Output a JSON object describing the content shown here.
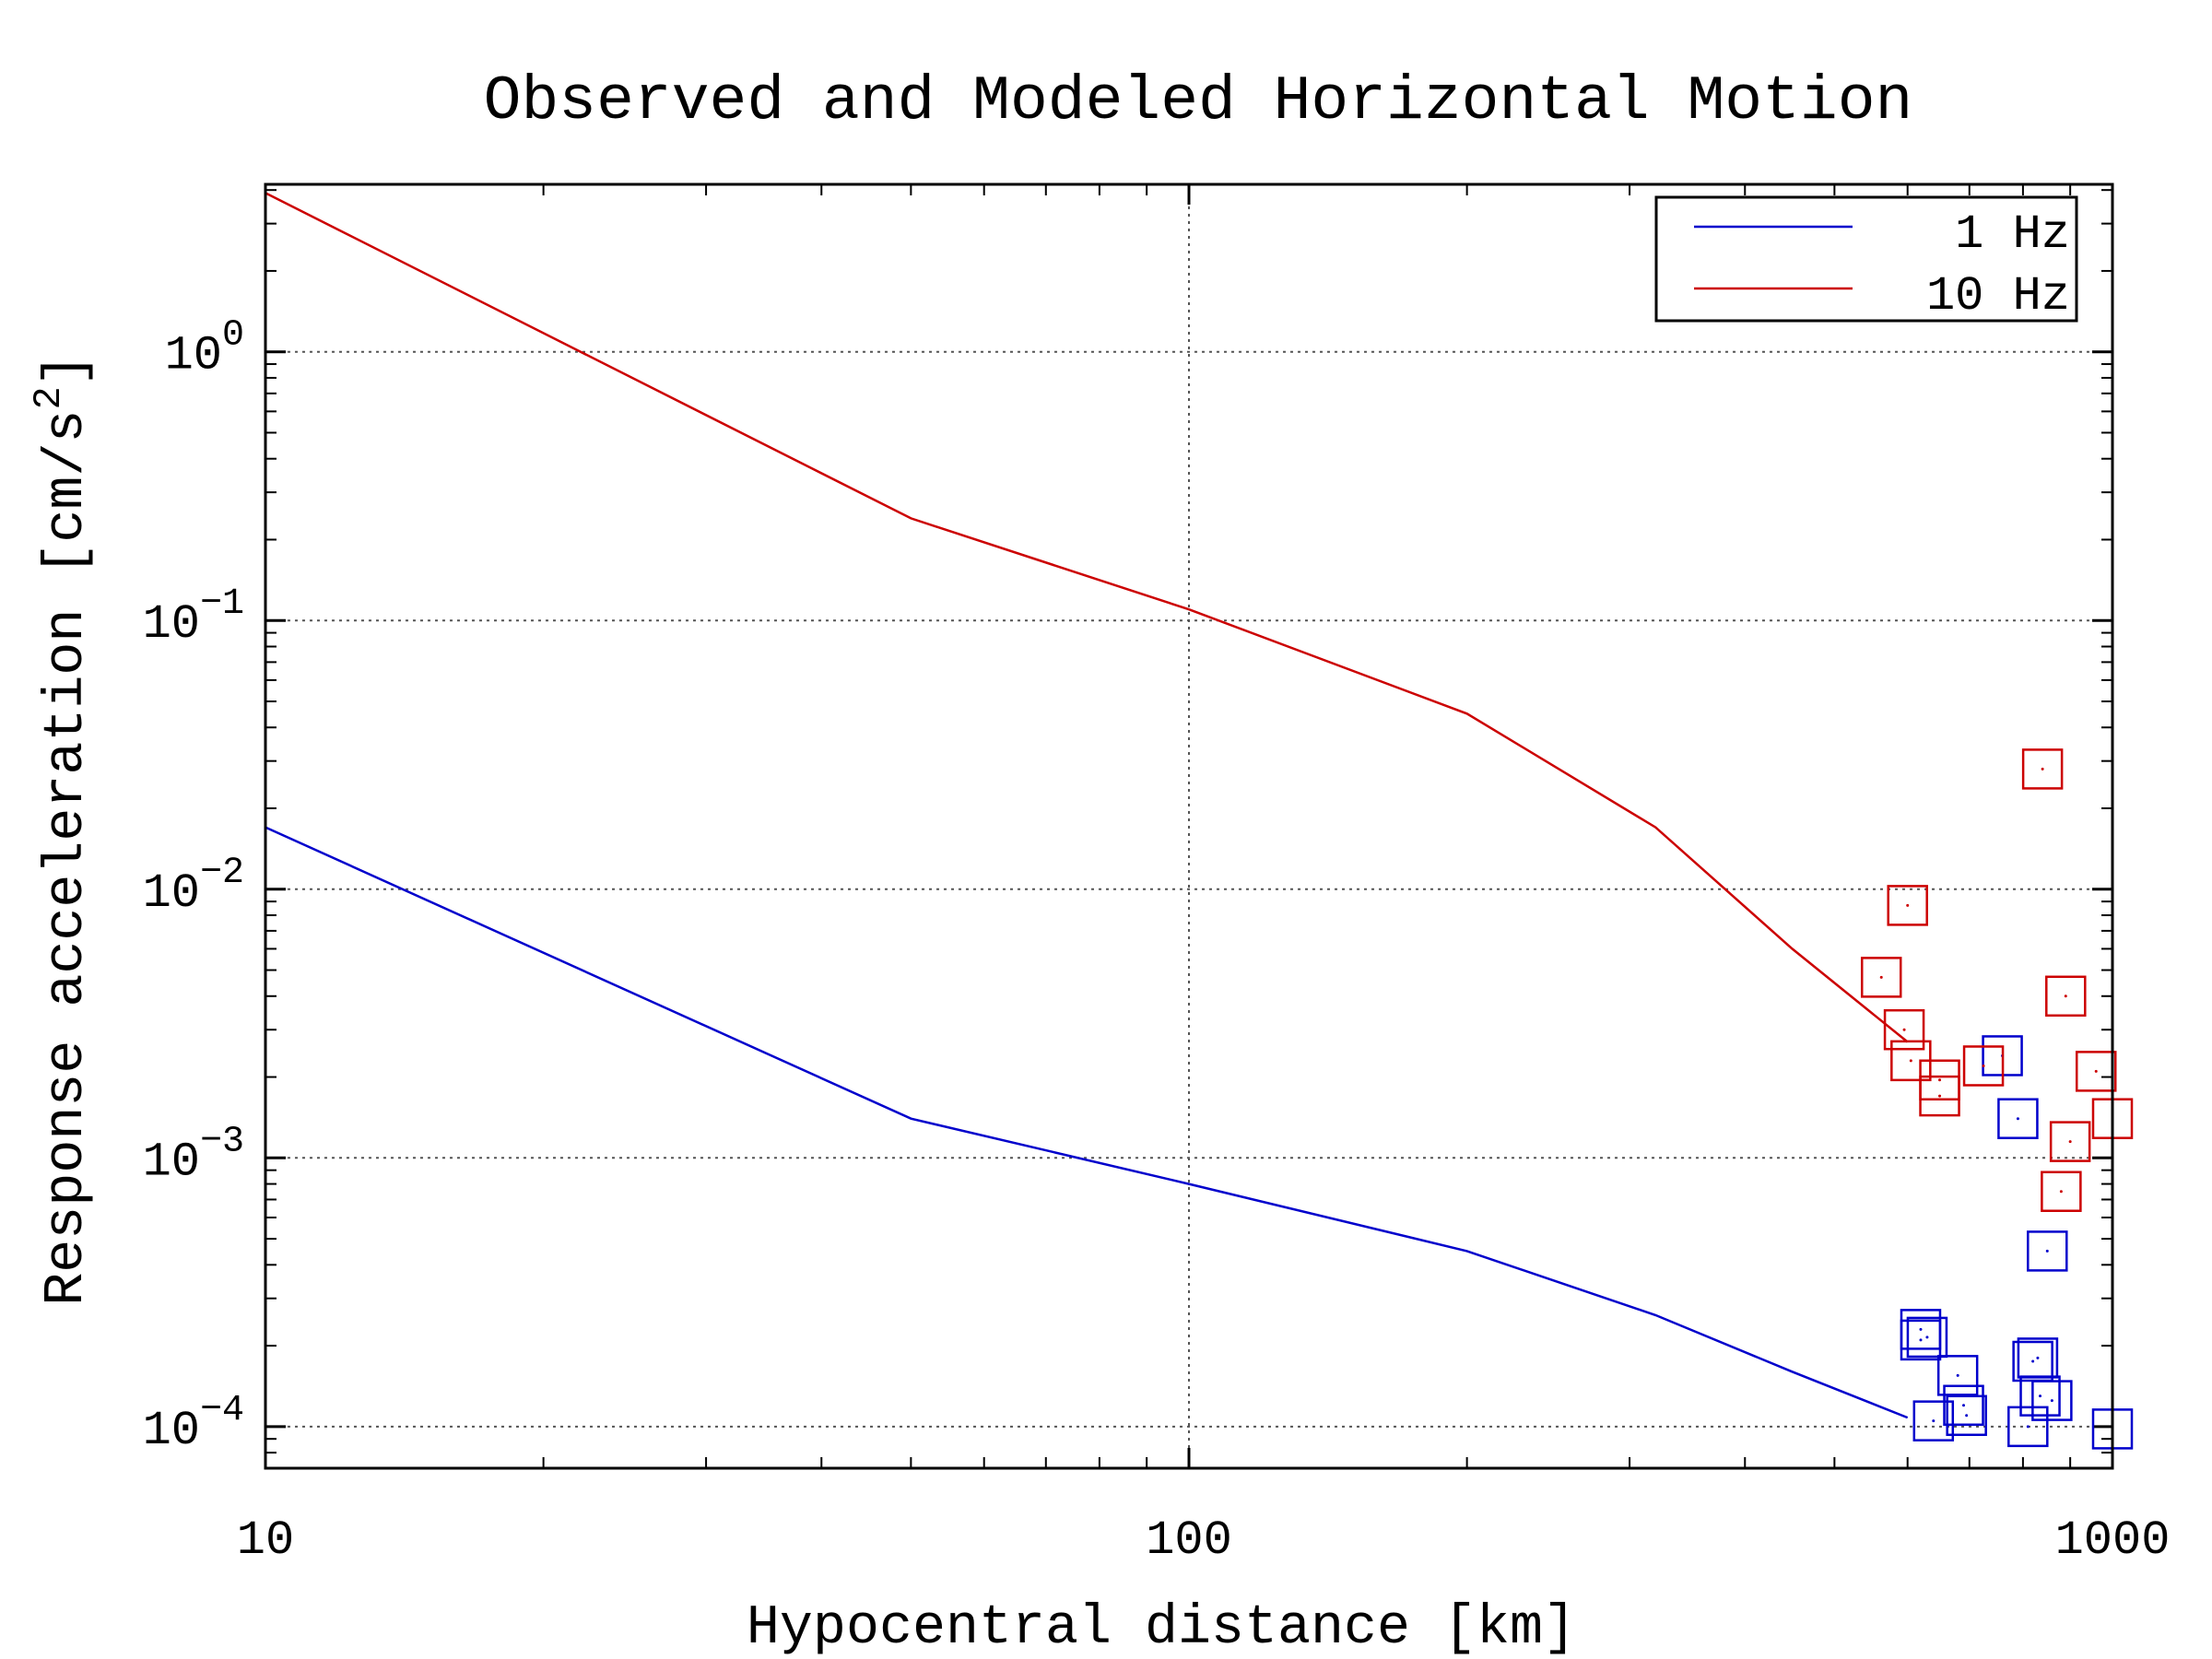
{
  "chart_data": {
    "type": "scatter",
    "title": "Observed and Modeled Horizontal Motion",
    "xlabel": "Hypocentral distance [km]",
    "ylabel": "Response acceleration [cm/s²]",
    "ylabel_main": "Response acceleration [cm/s",
    "ylabel_sup": "2",
    "ylabel_end": "]",
    "x_scale": "log",
    "y_scale": "log",
    "xlim": [
      10,
      1000
    ],
    "ylim": [
      7e-05,
      4.2
    ],
    "grid": true,
    "legend_position": "top-right",
    "x_ticks": [
      {
        "value": 10,
        "label": "10"
      },
      {
        "value": 100,
        "label": "100"
      },
      {
        "value": 1000,
        "label": "1000"
      }
    ],
    "y_ticks": [
      {
        "value": 1,
        "base": "10",
        "exp": "0"
      },
      {
        "value": 0.1,
        "base": "10",
        "exp": "−1"
      },
      {
        "value": 0.01,
        "base": "10",
        "exp": "−2"
      },
      {
        "value": 0.001,
        "base": "10",
        "exp": "−3"
      },
      {
        "value": 0.0001,
        "base": "10",
        "exp": "−4"
      }
    ],
    "series": [
      {
        "name": "1 Hz",
        "color": "#0000cc",
        "model_line": {
          "x": [
            10,
            50,
            100,
            200,
            320,
            450,
            600
          ],
          "y": [
            0.017,
            0.0014,
            0.0008,
            0.00045,
            0.00026,
            0.00016,
            0.000108
          ]
        },
        "observed": {
          "marker": "square",
          "x": [
            760,
            790,
            850,
            820,
            830,
            835,
            1000,
            680,
            690,
            695,
            640,
            810,
            860,
            620,
            630,
            620
          ],
          "y": [
            0.0024,
            0.0014,
            0.00045,
            0.000175,
            0.00018,
            0.00013,
            9.8e-05,
            0.000155,
            0.00012,
            0.00011,
            0.000105,
            0.0001,
            0.000125,
            0.00021,
            0.000215,
            0.00023
          ]
        }
      },
      {
        "name": "10 Hz",
        "color": "#cc0000",
        "model_line": {
          "x": [
            10,
            50,
            100,
            200,
            320,
            450,
            600
          ],
          "y": [
            3.9,
            0.24,
            0.11,
            0.045,
            0.017,
            0.006,
            0.0027
          ]
        },
        "observed": {
          "marker": "square",
          "x": [
            562,
            600,
            595,
            605,
            650,
            650,
            725,
            840,
            890,
            900,
            880,
            960,
            1000
          ],
          "y": [
            0.0047,
            0.0087,
            0.003,
            0.0023,
            0.00195,
            0.0017,
            0.0022,
            0.028,
            0.004,
            0.00115,
            0.00075,
            0.0021,
            0.0014
          ]
        }
      }
    ]
  }
}
